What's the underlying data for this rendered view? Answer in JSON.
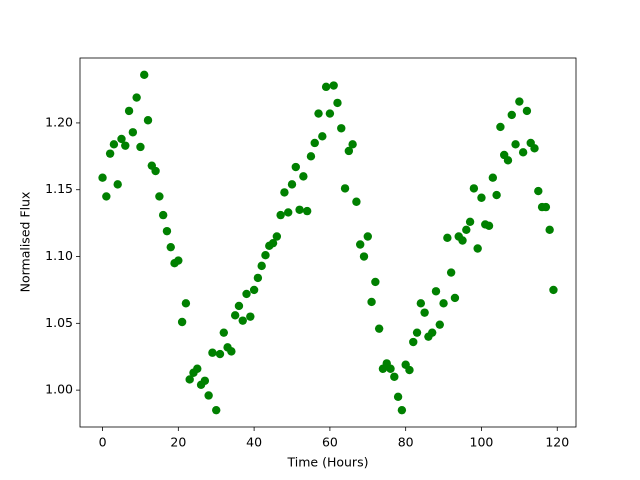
{
  "chart_data": {
    "type": "scatter",
    "xlabel": "Time (Hours)",
    "ylabel": "Normalised Flux",
    "color": "#008000",
    "x": [
      0,
      1,
      2,
      3,
      4,
      5,
      6,
      7,
      8,
      9,
      10,
      11,
      12,
      13,
      14,
      15,
      16,
      17,
      18,
      19,
      20,
      21,
      22,
      23,
      24,
      25,
      26,
      27,
      28,
      29,
      30,
      31,
      32,
      33,
      34,
      35,
      36,
      37,
      38,
      39,
      40,
      41,
      42,
      43,
      44,
      45,
      46,
      47,
      48,
      49,
      50,
      51,
      52,
      53,
      54,
      55,
      56,
      57,
      58,
      59,
      60,
      61,
      62,
      63,
      64,
      65,
      66,
      67,
      68,
      69,
      70,
      71,
      72,
      73,
      74,
      75,
      76,
      77,
      78,
      79,
      80,
      81,
      82,
      83,
      84,
      85,
      86,
      87,
      88,
      89,
      90,
      91,
      92,
      93,
      94,
      95,
      96,
      97,
      98,
      99,
      100,
      101,
      102,
      103,
      104,
      105,
      106,
      107,
      108,
      109,
      110,
      111,
      112,
      113,
      114,
      115,
      116,
      117,
      118,
      119
    ],
    "values": [
      1.159,
      1.145,
      1.177,
      1.184,
      1.154,
      1.188,
      1.183,
      1.209,
      1.193,
      1.219,
      1.182,
      1.236,
      1.202,
      1.168,
      1.164,
      1.145,
      1.131,
      1.119,
      1.107,
      1.095,
      1.097,
      1.051,
      1.065,
      1.008,
      1.013,
      1.016,
      1.004,
      1.007,
      0.996,
      1.028,
      0.985,
      1.027,
      1.043,
      1.032,
      1.029,
      1.056,
      1.063,
      1.052,
      1.072,
      1.055,
      1.075,
      1.084,
      1.093,
      1.101,
      1.108,
      1.11,
      1.115,
      1.131,
      1.148,
      1.133,
      1.154,
      1.167,
      1.135,
      1.16,
      1.134,
      1.175,
      1.185,
      1.207,
      1.19,
      1.227,
      1.207,
      1.228,
      1.215,
      1.196,
      1.151,
      1.179,
      1.184,
      1.141,
      1.109,
      1.1,
      1.115,
      1.066,
      1.081,
      1.046,
      1.016,
      1.02,
      1.016,
      1.01,
      0.995,
      0.985,
      1.019,
      1.015,
      1.036,
      1.043,
      1.065,
      1.058,
      1.04,
      1.043,
      1.074,
      1.049,
      1.065,
      1.114,
      1.088,
      1.069,
      1.115,
      1.112,
      1.12,
      1.126,
      1.151,
      1.106,
      1.144,
      1.124,
      1.123,
      1.159,
      1.146,
      1.197,
      1.176,
      1.172,
      1.206,
      1.184,
      1.216,
      1.178,
      1.209,
      1.185,
      1.181,
      1.149,
      1.137,
      1.137,
      1.12,
      1.075
    ],
    "xlim": [
      -5.95,
      124.95
    ],
    "ylim": [
      0.9724,
      1.2486
    ],
    "xticks": [
      0,
      20,
      40,
      60,
      80,
      100,
      120
    ],
    "yticks": [
      {
        "value": 1.0,
        "label": "1.00"
      },
      1.05,
      {
        "value": 1.1,
        "label": "1.10"
      },
      1.15,
      {
        "value": 1.2,
        "label": "1.20"
      }
    ]
  }
}
